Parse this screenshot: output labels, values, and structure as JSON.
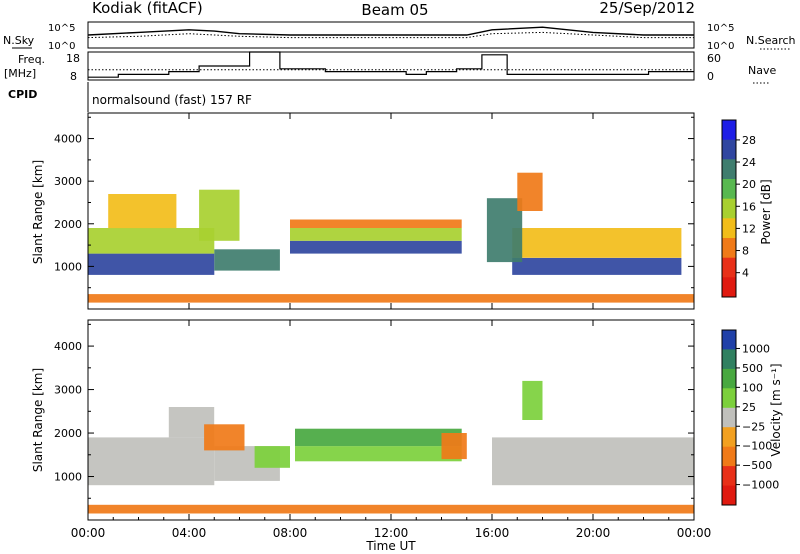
{
  "header": {
    "site": "Kodiak (fitACF)",
    "beam": "Beam 05",
    "date": "25/Sep/2012"
  },
  "panels": {
    "nsky_label": "N.Sky",
    "nsearch_label": "N.Search",
    "noise_ticks_left": [
      "10^5",
      "10^0"
    ],
    "noise_ticks_right": [
      "10^5",
      "10^0"
    ],
    "freq_label": "Freq.",
    "freq_unit": "[MHz]",
    "freq_ticks": [
      "18",
      "8"
    ],
    "nave_label": "Nave",
    "nave_ticks": [
      "60",
      "0"
    ],
    "cpid_label": "CPID",
    "cpid_text": "normalsound (fast) 157 RF"
  },
  "power_colorbar": {
    "label": "Power [dB]",
    "ticks": [
      "28",
      "24",
      "20",
      "16",
      "12",
      "8",
      "4"
    ],
    "colors": [
      "#1e1ee6",
      "#3046a0",
      "#3f7d6e",
      "#58b850",
      "#a8d030",
      "#f2bd1a",
      "#f07a18",
      "#e83018",
      "#e01a10"
    ]
  },
  "velocity_colorbar": {
    "label": "Velocity [m s⁻¹]",
    "ticks": [
      "1000",
      "500",
      "100",
      "25",
      "−25",
      "−100",
      "−500",
      "−1000"
    ],
    "colors": [
      "#2040a8",
      "#308060",
      "#48a840",
      "#7cd03c",
      "#c0c0bc",
      "#f2a020",
      "#f07a18",
      "#e83018",
      "#e01a10"
    ]
  },
  "axes": {
    "ylabel": "Slant Range [km]",
    "yticks": [
      "4000",
      "3000",
      "2000",
      "1000"
    ],
    "xlabel": "Time UT",
    "xticks": [
      "00:00",
      "04:00",
      "08:00",
      "12:00",
      "16:00",
      "20:00",
      "00:00"
    ]
  },
  "chart_data": [
    {
      "type": "line",
      "series": [
        {
          "name": "N.Sky",
          "x": [
            0,
            2,
            4,
            5,
            6,
            8,
            10,
            12,
            14,
            15,
            16,
            18,
            20,
            22,
            24
          ],
          "y": [
            10,
            12,
            14,
            13,
            11,
            10,
            10,
            10,
            10,
            10,
            14,
            16,
            12,
            10,
            10
          ]
        },
        {
          "name": "N.Search",
          "x": [
            0,
            2,
            4,
            5,
            6,
            8,
            10,
            12,
            14,
            15,
            16,
            18,
            20,
            22,
            24
          ],
          "y": [
            8,
            9,
            11,
            10,
            9,
            8,
            8,
            8,
            8,
            8,
            11,
            12,
            10,
            8,
            8
          ]
        }
      ],
      "xlim": [
        0,
        24
      ],
      "ylim": [
        0,
        20
      ]
    },
    {
      "type": "line",
      "series": [
        {
          "name": "Freq.",
          "x": [
            0,
            1.2,
            3.2,
            4.4,
            6.4,
            7.6,
            9.4,
            12.6,
            13.4,
            14.6,
            15.6,
            16.6,
            22.2,
            24
          ],
          "y": [
            9,
            10,
            11,
            13,
            18,
            12,
            11,
            10,
            11,
            12,
            17,
            10,
            11,
            11
          ]
        },
        {
          "name": "Nave",
          "x": [
            0,
            24
          ],
          "y": [
            22,
            22
          ]
        }
      ],
      "xlim": [
        0,
        24
      ]
    },
    {
      "type": "heatmap",
      "quantity": "Power [dB]",
      "xlim": [
        0,
        24
      ],
      "ylim": [
        0,
        4600
      ],
      "clim": [
        0,
        30
      ],
      "regions": [
        {
          "t0": 0.0,
          "t1": 5.0,
          "r0": 800,
          "r1": 1300,
          "value": 26
        },
        {
          "t0": 0.0,
          "t1": 5.0,
          "r0": 1300,
          "r1": 1900,
          "value": 14
        },
        {
          "t0": 0.8,
          "t1": 3.5,
          "r0": 1900,
          "r1": 2700,
          "value": 10
        },
        {
          "t0": 5.0,
          "t1": 7.6,
          "r0": 900,
          "r1": 1400,
          "value": 22
        },
        {
          "t0": 4.4,
          "t1": 6.0,
          "r0": 1600,
          "r1": 2800,
          "value": 16
        },
        {
          "t0": 8.0,
          "t1": 14.8,
          "r0": 1300,
          "r1": 1600,
          "value": 26
        },
        {
          "t0": 8.0,
          "t1": 14.8,
          "r0": 1600,
          "r1": 1900,
          "value": 14
        },
        {
          "t0": 8.0,
          "t1": 14.8,
          "r0": 1900,
          "r1": 2100,
          "value": 9
        },
        {
          "t0": 16.8,
          "t1": 23.5,
          "r0": 800,
          "r1": 1200,
          "value": 26
        },
        {
          "t0": 16.8,
          "t1": 23.5,
          "r0": 1200,
          "r1": 1900,
          "value": 12
        },
        {
          "t0": 15.8,
          "t1": 17.2,
          "r0": 1100,
          "r1": 2600,
          "value": 20
        },
        {
          "t0": 17.0,
          "t1": 18.0,
          "r0": 2300,
          "r1": 3200,
          "value": 9
        },
        {
          "t0": 0.0,
          "t1": 24.0,
          "r0": 150,
          "r1": 350,
          "value": 8
        }
      ]
    },
    {
      "type": "heatmap",
      "quantity": "Velocity [m s⁻¹]",
      "xlim": [
        0,
        24
      ],
      "ylim": [
        0,
        4600
      ],
      "regions": [
        {
          "t0": 0.0,
          "t1": 5.0,
          "r0": 800,
          "r1": 1900,
          "value": 0
        },
        {
          "t0": 3.2,
          "t1": 5.0,
          "r0": 1900,
          "r1": 2600,
          "value": 0
        },
        {
          "t0": 5.0,
          "t1": 7.6,
          "r0": 900,
          "r1": 1700,
          "value": -20
        },
        {
          "t0": 4.6,
          "t1": 6.2,
          "r0": 1600,
          "r1": 2200,
          "value": -150
        },
        {
          "t0": 6.6,
          "t1": 8.0,
          "r0": 1200,
          "r1": 1700,
          "value": 60
        },
        {
          "t0": 8.2,
          "t1": 14.8,
          "r0": 1350,
          "r1": 1700,
          "value": 30
        },
        {
          "t0": 8.2,
          "t1": 14.8,
          "r0": 1700,
          "r1": 2100,
          "value": 300
        },
        {
          "t0": 14.0,
          "t1": 15.0,
          "r0": 1400,
          "r1": 2000,
          "value": -150
        },
        {
          "t0": 16.0,
          "t1": 24.0,
          "r0": 800,
          "r1": 1900,
          "value": 0
        },
        {
          "t0": 17.2,
          "t1": 18.0,
          "r0": 2300,
          "r1": 3200,
          "value": 60
        },
        {
          "t0": 0.0,
          "t1": 24.0,
          "r0": 150,
          "r1": 350,
          "value": -150
        }
      ]
    }
  ]
}
